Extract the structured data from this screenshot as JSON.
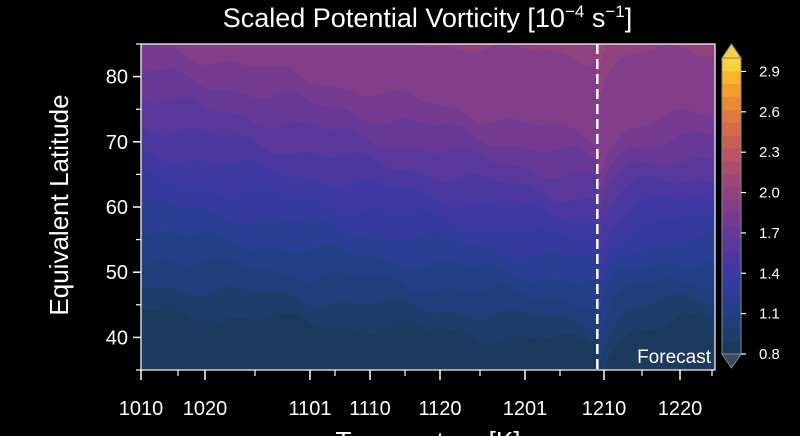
{
  "chart_data": {
    "type": "heatmap",
    "title": {
      "main": "Scaled Potential Vorticity [10",
      "exp1": "−4",
      "mid": " s",
      "exp2": "−1",
      "end": "]"
    },
    "xlabel": "Temperature [K]",
    "ylabel": "Equivalent Latitude",
    "x_tick_labels": [
      "1010",
      "1020",
      "1101",
      "1110",
      "1120",
      "1201",
      "1210",
      "1220"
    ],
    "y_ticks": [
      40,
      50,
      60,
      70,
      80
    ],
    "ylim": [
      35,
      85
    ],
    "forecast_label": "Forecast",
    "forecast_position_fraction": 0.795,
    "colorbar": {
      "levels": [
        0.8,
        0.9,
        1.0,
        1.1,
        1.2,
        1.3,
        1.4,
        1.5,
        1.6,
        1.7,
        1.8,
        1.9,
        2.0,
        2.1,
        2.2,
        2.3,
        2.4,
        2.5,
        2.6,
        2.7,
        2.8,
        2.9,
        3.0
      ],
      "tick_labels": [
        "0.8",
        "1.1",
        "1.4",
        "1.7",
        "2.0",
        "2.3",
        "2.6",
        "2.9"
      ],
      "colors": [
        "#1b3a5e",
        "#1d3d6b",
        "#203e79",
        "#253f87",
        "#2b3e93",
        "#343b9c",
        "#3e39a0",
        "#4b389f",
        "#59389c",
        "#673996",
        "#743b90",
        "#823e88",
        "#90427f",
        "#9e4776",
        "#ac4d6b",
        "#ba5560",
        "#c85f54",
        "#d56b49",
        "#e2793f",
        "#ec8935",
        "#f39d2f",
        "#f8b52d",
        "#f9d03d"
      ],
      "extend": "both"
    }
  }
}
